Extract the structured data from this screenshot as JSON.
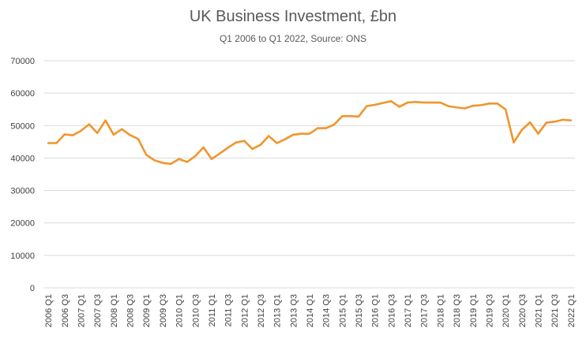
{
  "chart_data": {
    "type": "line",
    "title": "UK Business Investment, £bn",
    "subtitle": "Q1 2006  to Q1 2022,  Source: ONS",
    "xlabel": "",
    "ylabel": "",
    "ylim": [
      0,
      70000
    ],
    "yticks": [
      "0",
      "10000",
      "20000",
      "30000",
      "40000",
      "50000",
      "60000",
      "70000"
    ],
    "grid": true,
    "legend": "none",
    "categories": [
      "2006 Q1",
      "2006 Q2",
      "2006 Q3",
      "2006 Q4",
      "2007 Q1",
      "2007 Q2",
      "2007 Q3",
      "2007 Q4",
      "2008 Q1",
      "2008 Q2",
      "2008 Q3",
      "2008 Q4",
      "2009 Q1",
      "2009 Q2",
      "2009 Q3",
      "2009 Q4",
      "2010 Q1",
      "2010 Q2",
      "2010 Q3",
      "2010 Q4",
      "2011 Q1",
      "2011 Q2",
      "2011 Q3",
      "2011 Q4",
      "2012 Q1",
      "2012 Q2",
      "2012 Q3",
      "2012 Q4",
      "2013 Q1",
      "2013 Q2",
      "2013 Q3",
      "2013 Q4",
      "2014 Q1",
      "2014 Q2",
      "2014 Q3",
      "2014 Q4",
      "2015 Q1",
      "2015 Q2",
      "2015 Q3",
      "2015 Q4",
      "2016 Q1",
      "2016 Q2",
      "2016 Q3",
      "2016 Q4",
      "2017 Q1",
      "2017 Q2",
      "2017 Q3",
      "2017 Q4",
      "2018 Q1",
      "2018 Q2",
      "2018 Q3",
      "2018 Q4",
      "2019 Q1",
      "2019 Q2",
      "2019 Q3",
      "2019 Q4",
      "2020 Q1",
      "2020 Q2",
      "2020 Q3",
      "2020 Q4",
      "2021 Q1",
      "2021 Q2",
      "2021 Q3",
      "2021 Q4",
      "2022 Q1"
    ],
    "tick_labels": [
      "2006 Q1",
      "2006 Q3",
      "2007 Q1",
      "2007 Q3",
      "2008 Q1",
      "2008 Q3",
      "2009 Q1",
      "2009 Q3",
      "2010 Q1",
      "2010 Q3",
      "2011 Q1",
      "2011 Q3",
      "2012 Q1",
      "2012 Q3",
      "2013 Q1",
      "2013 Q3",
      "2014 Q1",
      "2014 Q3",
      "2015 Q1",
      "2015 Q3",
      "2016 Q1",
      "2016 Q3",
      "2017 Q1",
      "2017 Q3",
      "2018 Q1",
      "2018 Q3",
      "2019 Q1",
      "2019 Q3",
      "2020 Q1",
      "2020 Q3",
      "2021 Q1",
      "2021 Q3",
      "2022 Q1"
    ],
    "series": [
      {
        "color": "#F0962D",
        "values": [
          44600,
          44600,
          47300,
          47000,
          48400,
          50400,
          47700,
          51600,
          47200,
          48900,
          47100,
          45900,
          41000,
          39300,
          38500,
          38200,
          39700,
          38800,
          40600,
          43300,
          39700,
          41400,
          43200,
          44800,
          45300,
          42800,
          44100,
          46800,
          44600,
          45800,
          47200,
          47500,
          47500,
          49200,
          49200,
          50300,
          52900,
          52900,
          52800,
          56000,
          56400,
          57000,
          57500,
          55800,
          57100,
          57300,
          57100,
          57100,
          57100,
          56000,
          55600,
          55300,
          56100,
          56300,
          56800,
          56800,
          55000,
          44800,
          48700,
          51000,
          47500,
          50900,
          51200,
          51800,
          51600
        ]
      }
    ]
  }
}
